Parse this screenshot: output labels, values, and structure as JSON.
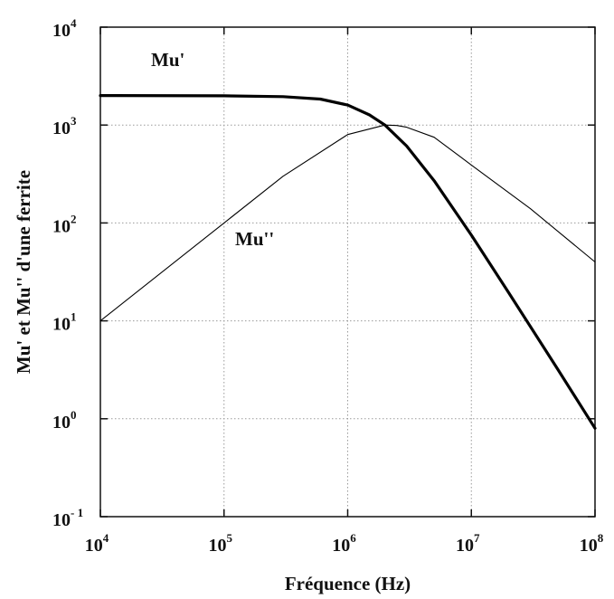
{
  "chart_data": {
    "type": "line",
    "title": "",
    "xlabel": "Fréquence (Hz)",
    "ylabel": "Mu' et Mu'' d'une ferrite",
    "xscale": "log",
    "yscale": "log",
    "xlim": [
      10000,
      100000000
    ],
    "ylim": [
      0.1,
      10000
    ],
    "grid": true,
    "x_ticks": [
      {
        "base": "10",
        "exp": "4",
        "value": 10000
      },
      {
        "base": "10",
        "exp": "5",
        "value": 100000
      },
      {
        "base": "10",
        "exp": "6",
        "value": 1000000
      },
      {
        "base": "10",
        "exp": "7",
        "value": 10000000
      },
      {
        "base": "10",
        "exp": "8",
        "value": 100000000
      }
    ],
    "y_ticks": [
      {
        "base": "10",
        "exp": "4",
        "value": 10000
      },
      {
        "base": "10",
        "exp": "3",
        "value": 1000
      },
      {
        "base": "10",
        "exp": "2",
        "value": 100
      },
      {
        "base": "10",
        "exp": "1",
        "value": 10
      },
      {
        "base": "10",
        "exp": "0",
        "value": 1
      },
      {
        "base": "10",
        "exp": "- 1",
        "value": 0.1
      }
    ],
    "series": [
      {
        "name": "Mu'",
        "color": "#000000",
        "weight": "thick",
        "x": [
          10000,
          100000,
          300000,
          600000,
          1000000,
          1500000,
          2000000,
          3000000,
          5000000,
          10000000,
          20000000,
          50000000,
          100000000
        ],
        "y": [
          2000,
          1990,
          1950,
          1840,
          1600,
          1270,
          1000,
          610,
          270,
          75,
          19.5,
          3.2,
          0.8
        ]
      },
      {
        "name": "Mu''",
        "color": "#000000",
        "weight": "thin",
        "x": [
          10000,
          100000,
          300000,
          1000000,
          2000000,
          2500000,
          3000000,
          5000000,
          10000000,
          30000000,
          100000000
        ],
        "y": [
          10,
          100,
          300,
          800,
          1000,
          990,
          950,
          750,
          390,
          140,
          40
        ]
      }
    ]
  }
}
